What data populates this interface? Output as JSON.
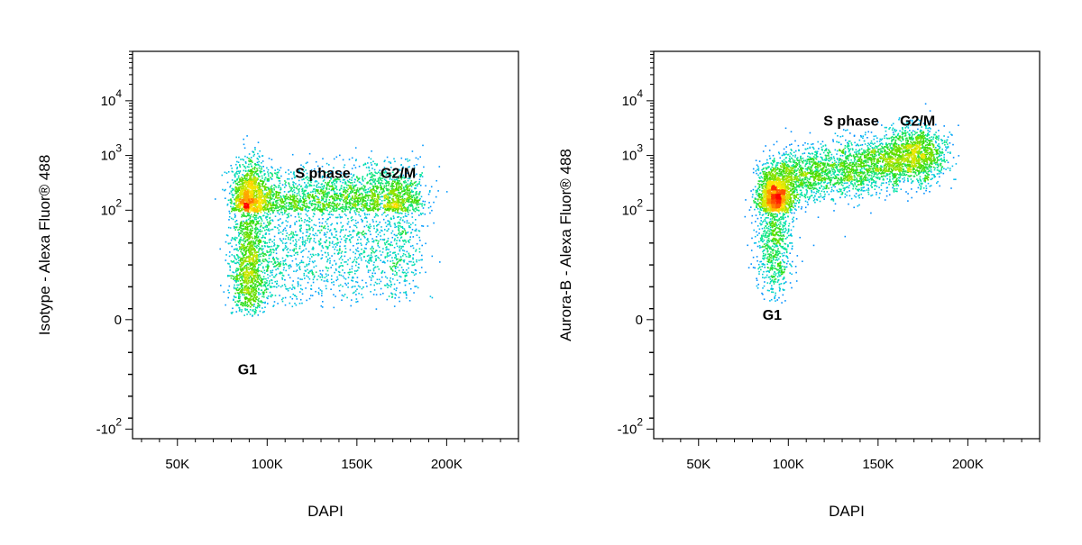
{
  "chart_data": [
    {
      "type": "scatter",
      "style": "density-dot-plot",
      "xlabel": "DAPI",
      "ylabel": "Isotype - Alexa Fluor® 488",
      "x_scale": "linear",
      "y_scale": "biexponential",
      "xlim": [
        25000,
        240000
      ],
      "ylim": [
        -150,
        80000
      ],
      "x_ticks": [
        {
          "value": 50000,
          "label": "50K"
        },
        {
          "value": 100000,
          "label": "100K"
        },
        {
          "value": 150000,
          "label": "150K"
        },
        {
          "value": 200000,
          "label": "200K"
        }
      ],
      "y_ticks": [
        {
          "value": -100,
          "label": "-10",
          "exp": "2"
        },
        {
          "value": 0,
          "label": "0",
          "exp": ""
        },
        {
          "value": 100,
          "label": "10",
          "exp": "2"
        },
        {
          "value": 1000,
          "label": "10",
          "exp": "3"
        },
        {
          "value": 10000,
          "label": "10",
          "exp": "4"
        }
      ],
      "annotations": [
        {
          "text": "G1",
          "x": 89000,
          "y": -50
        },
        {
          "text": "S phase",
          "x": 131000,
          "y": 390
        },
        {
          "text": "G2/M",
          "x": 173000,
          "y": 390
        }
      ],
      "populations": [
        {
          "name": "G1",
          "x_center": 90000,
          "x_sd": 5200,
          "y_center": 100,
          "y_spread_decades": 0.42,
          "events": 2600
        },
        {
          "name": "S phase",
          "x_range": [
            98000,
            162000
          ],
          "y_start": 105,
          "y_end": 125,
          "y_spread_decades": 0.34,
          "events": 2300
        },
        {
          "name": "G2/M",
          "x_center": 172000,
          "x_sd": 8000,
          "y_center": 130,
          "y_spread_decades": 0.34,
          "events": 1200
        }
      ],
      "colormap": [
        "#0000ff",
        "#00b4ff",
        "#00e6a0",
        "#3cdc00",
        "#c8e600",
        "#ffe600",
        "#ff9600",
        "#ff0000"
      ]
    },
    {
      "type": "scatter",
      "style": "density-dot-plot",
      "xlabel": "DAPI",
      "ylabel": "Aurora-B - Alexa Fluor® 488",
      "x_scale": "linear",
      "y_scale": "biexponential",
      "xlim": [
        25000,
        240000
      ],
      "ylim": [
        -150,
        80000
      ],
      "x_ticks": [
        {
          "value": 50000,
          "label": "50K"
        },
        {
          "value": 100000,
          "label": "100K"
        },
        {
          "value": 150000,
          "label": "150K"
        },
        {
          "value": 200000,
          "label": "200K"
        }
      ],
      "y_ticks": [
        {
          "value": -100,
          "label": "-10",
          "exp": "2"
        },
        {
          "value": 0,
          "label": "0",
          "exp": ""
        },
        {
          "value": 100,
          "label": "10",
          "exp": "2"
        },
        {
          "value": 1000,
          "label": "10",
          "exp": "3"
        },
        {
          "value": 10000,
          "label": "10",
          "exp": "4"
        }
      ],
      "annotations": [
        {
          "text": "G1",
          "x": 91000,
          "y": 0
        },
        {
          "text": "S phase",
          "x": 135000,
          "y": 3500
        },
        {
          "text": "G2/M",
          "x": 172000,
          "y": 3500
        }
      ],
      "populations": [
        {
          "name": "G1",
          "x_center": 92000,
          "x_sd": 4800,
          "y_center": 150,
          "y_spread_decades": 0.32,
          "events": 2300
        },
        {
          "name": "S phase",
          "x_range": [
            96000,
            162000
          ],
          "y_start": 380,
          "y_end": 850,
          "y_spread_decades": 0.26,
          "events": 2100
        },
        {
          "name": "G2/M",
          "x_center": 171000,
          "x_sd": 8000,
          "y_center": 1050,
          "y_spread_decades": 0.26,
          "events": 1300
        }
      ],
      "colormap": [
        "#0000ff",
        "#00b4ff",
        "#00e6a0",
        "#3cdc00",
        "#c8e600",
        "#ffe600",
        "#ff9600",
        "#ff0000"
      ]
    }
  ]
}
